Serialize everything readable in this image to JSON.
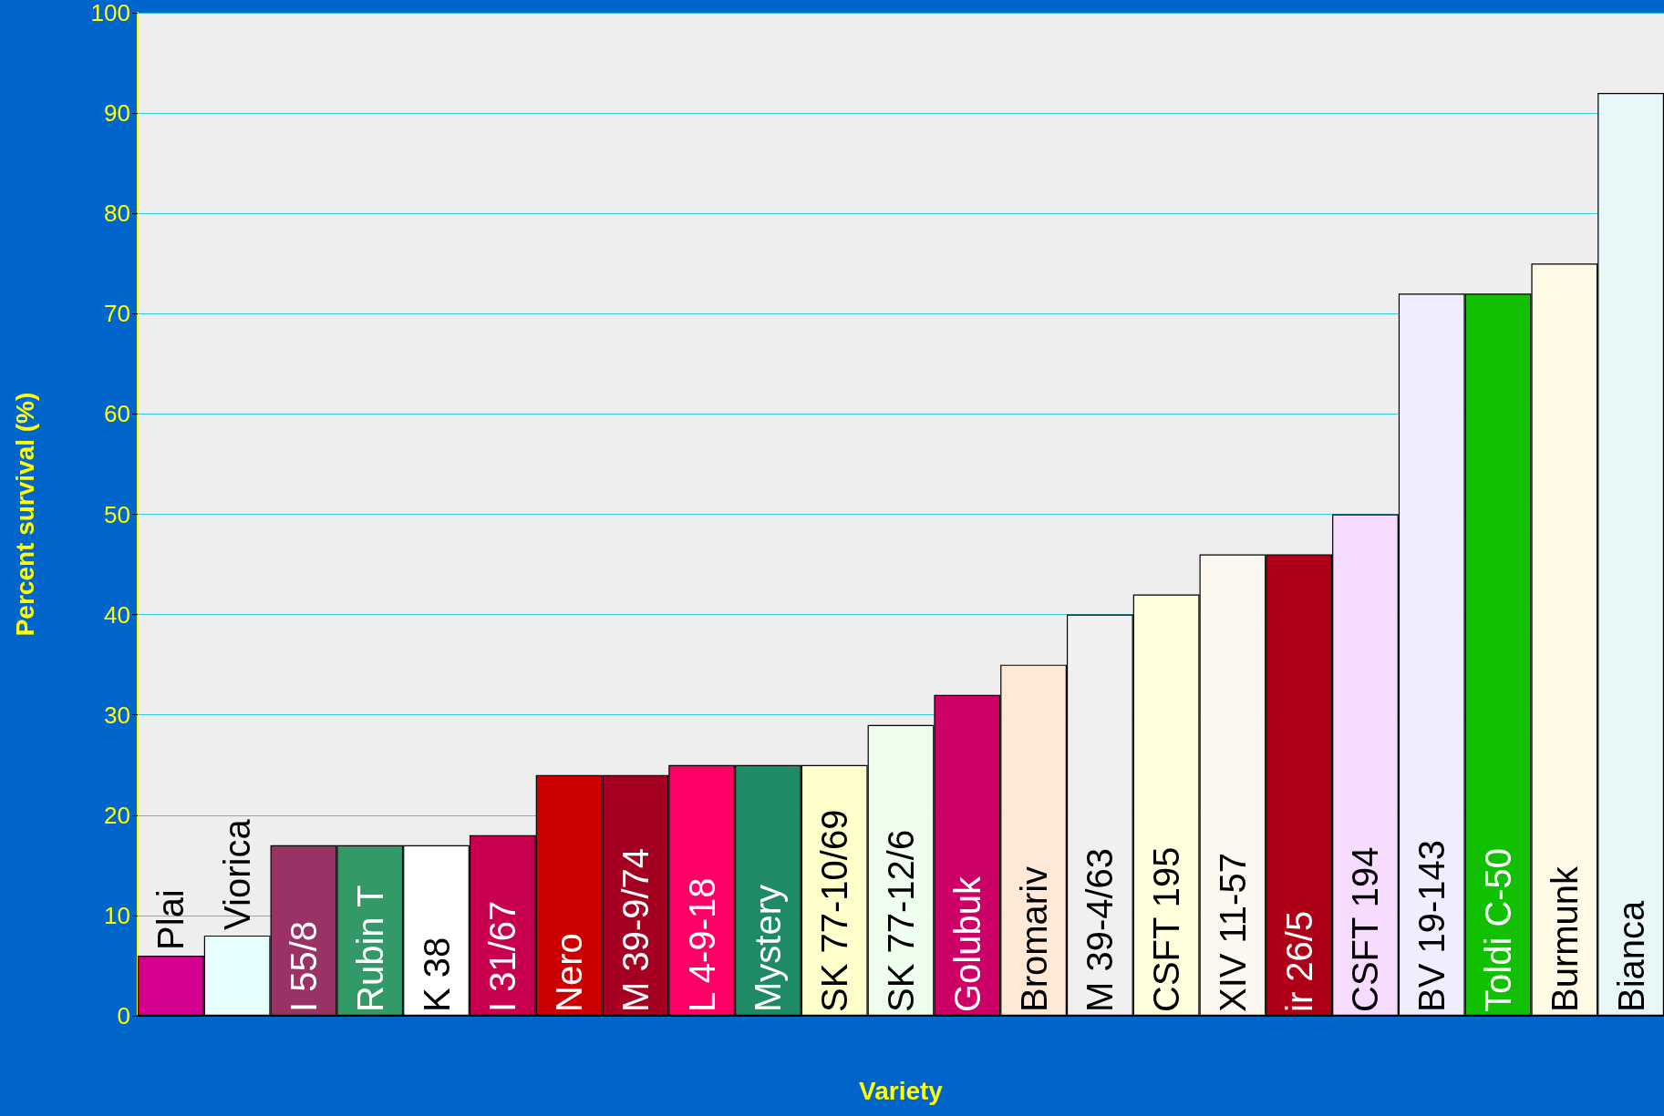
{
  "chart_data": {
    "type": "bar",
    "xlabel": "Variety",
    "ylabel": "Percent survival (%)",
    "categories": [
      "Plai",
      "Viorica",
      "I 55/8",
      "Rubin T",
      "K 38",
      "I 31/67",
      "Nero",
      "M 39-9/74",
      "L 4-9-18",
      "Mystery",
      "SK 77-10/69",
      "SK 77-12/6",
      "Golubuk",
      "Bromariv",
      "M 39-4/63",
      "CSFT 195",
      "XIV 11-57",
      "ir 26/5",
      "CSFT 194",
      "BV 19-143",
      "Toldi C-50",
      "Burmunk",
      "Bianca"
    ],
    "values": [
      6,
      8,
      17,
      17,
      17,
      18,
      24,
      24,
      25,
      25,
      25,
      29,
      32,
      35,
      40,
      42,
      46,
      46,
      50,
      72,
      72,
      75,
      92
    ],
    "colors": [
      "#d4008f",
      "#e8ffff",
      "#993366",
      "#339966",
      "#ffffff",
      "#c8004f",
      "#cc0000",
      "#a50021",
      "#ff0066",
      "#1f8a66",
      "#ffffcc",
      "#eeffee",
      "#cc0066",
      "#ffe8d6",
      "#f0f0f0",
      "#ffffdd",
      "#fcf8f0",
      "#b00018",
      "#f8dcff",
      "#eeeeff",
      "#11c000",
      "#fffae6",
      "#e8f8f8"
    ],
    "ylim": [
      0,
      100
    ],
    "yticks": [
      0,
      10,
      20,
      30,
      40,
      50,
      60,
      70,
      80,
      90,
      100
    ],
    "grid": "y"
  }
}
